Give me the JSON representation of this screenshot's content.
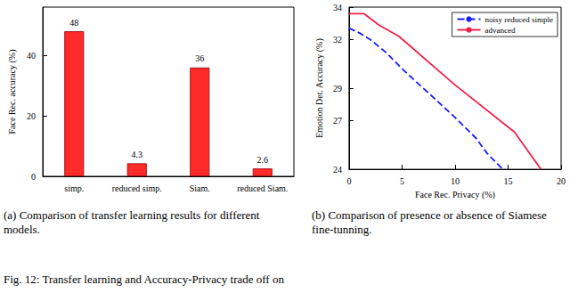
{
  "chart_data": [
    {
      "type": "bar",
      "categories": [
        "simp.",
        "reduced simp.",
        "Siam.",
        "reduced Siam."
      ],
      "values": [
        48,
        4.3,
        36,
        2.6
      ],
      "color": "#ff2a2a",
      "ylabel": "Face Rec. accuracy (%)",
      "ylim": [
        0,
        56
      ],
      "yticks": [
        0,
        20,
        40
      ],
      "data_labels": true,
      "grid": false,
      "caption": "(a) Comparison of transfer learning results for different models."
    },
    {
      "type": "line",
      "xlabel": "Face Rec. Privacy (%)",
      "ylabel": "Emotion Det. Accuracy (%)",
      "xlim": [
        0,
        20
      ],
      "xticks": [
        0,
        5,
        10,
        15,
        20
      ],
      "ylim": [
        24,
        34
      ],
      "yticks": [
        24,
        27,
        29,
        32,
        34
      ],
      "legend": "upper right",
      "grid": false,
      "series": [
        {
          "name": "noisy reduced simple",
          "color": "#1a1aff",
          "line_style": "dashed",
          "x": [
            0,
            1,
            2,
            3.5,
            5,
            7.5,
            10,
            12,
            13,
            14.5
          ],
          "values": [
            32.7,
            32.4,
            32.0,
            31.2,
            30.2,
            28.7,
            27.2,
            25.9,
            25.0,
            24
          ]
        },
        {
          "name": "advanced",
          "color": "#f0204a",
          "line_style": "solid",
          "x": [
            0,
            1.4,
            2.8,
            4.7,
            10,
            15.6,
            18.1
          ],
          "values": [
            33.6,
            33.6,
            32.9,
            32.2,
            29.2,
            26.3,
            24
          ]
        }
      ],
      "caption": "(b) Comparison of presence or absence of Siamese fine-tunning."
    }
  ],
  "figure_caption": "Fig. 12: Transfer learning and Accuracy-Privacy trade off on"
}
